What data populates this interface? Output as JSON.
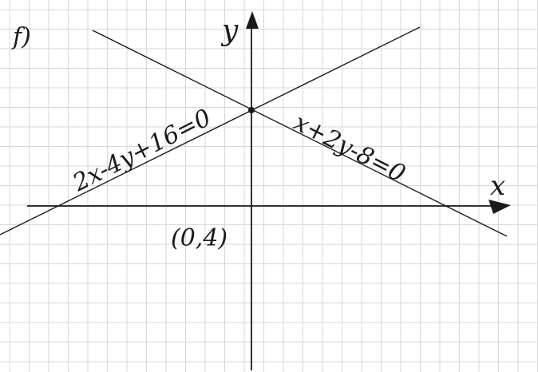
{
  "problem_label": "f)",
  "axes": {
    "x_label": "x",
    "y_label": "y"
  },
  "lines": [
    {
      "equation": "2x-4y+16=0"
    },
    {
      "equation": "x+2y-8=0"
    }
  ],
  "intersection": {
    "label": "(0,4)"
  },
  "colors": {
    "ink": "#1a1a1a",
    "grid": "#d7d7d7",
    "paper": "#ffffff"
  }
}
